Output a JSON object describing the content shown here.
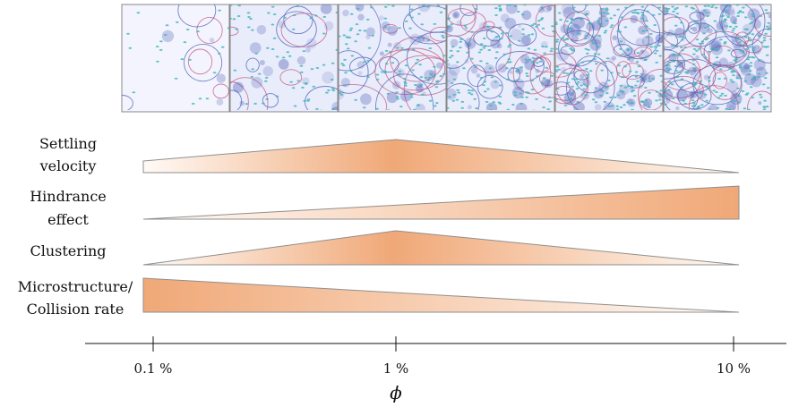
{
  "images": [
    {
      "id": "panel-1"
    },
    {
      "id": "panel-2"
    },
    {
      "id": "panel-3"
    },
    {
      "id": "panel-4"
    },
    {
      "id": "panel-5"
    },
    {
      "id": "panel-6"
    }
  ],
  "rows": [
    {
      "label_lines": [
        "Settling",
        "velocity"
      ],
      "trend": "rise-then-fall",
      "peak_at": "1 %"
    },
    {
      "label_lines": [
        "Hindrance",
        "effect"
      ],
      "trend": "increasing"
    },
    {
      "label_lines": [
        "Clustering"
      ],
      "trend": "rise-then-fall",
      "peak_at": "1 %"
    },
    {
      "label_lines": [
        "Microstructure/",
        "Collision rate"
      ],
      "trend": "decreasing"
    }
  ],
  "axis": {
    "symbol": "ϕ",
    "scale": "log",
    "ticks": [
      {
        "value": 0.1,
        "label": "0.1 %"
      },
      {
        "value": 1,
        "label": "1 %"
      },
      {
        "value": 10,
        "label": "10 %"
      }
    ]
  },
  "colors": {
    "gradient_strong": "#f0a877",
    "gradient_light": "#fffaf6",
    "outline": "#8f8f8f",
    "contour_pink": "#c0557e",
    "contour_blue": "#4b5db5",
    "particle_teal": "#3fb4b9",
    "panel_bg": "#e9ecfb"
  }
}
